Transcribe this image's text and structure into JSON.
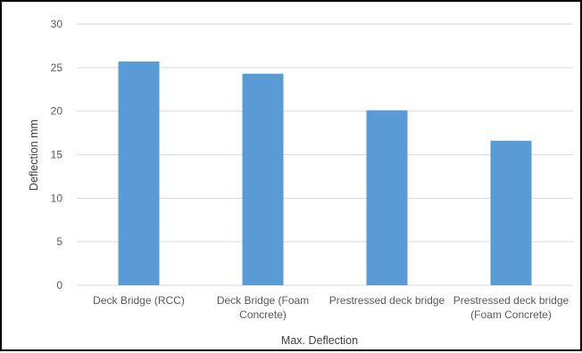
{
  "chart_data": {
    "type": "bar",
    "categories": [
      [
        "Deck Bridge (RCC)"
      ],
      [
        "Deck Bridge (Foam",
        "Concrete)"
      ],
      [
        "Prestressed deck bridge"
      ],
      [
        "Prestressed deck bridge",
        "(Foam Concrete)"
      ]
    ],
    "series": [
      {
        "values": [
          25.7,
          24.3,
          20.1,
          16.6
        ]
      }
    ],
    "ylabel": "Deflection mm",
    "xlabel": "Max. Deflection",
    "ylim": [
      0,
      30
    ],
    "yticks": [
      "0",
      "5",
      "10",
      "15",
      "20",
      "25",
      "30"
    ],
    "grid": true,
    "legend": "none",
    "bar_color": "#5B9BD5",
    "grid_color": "#D9D9D9"
  }
}
